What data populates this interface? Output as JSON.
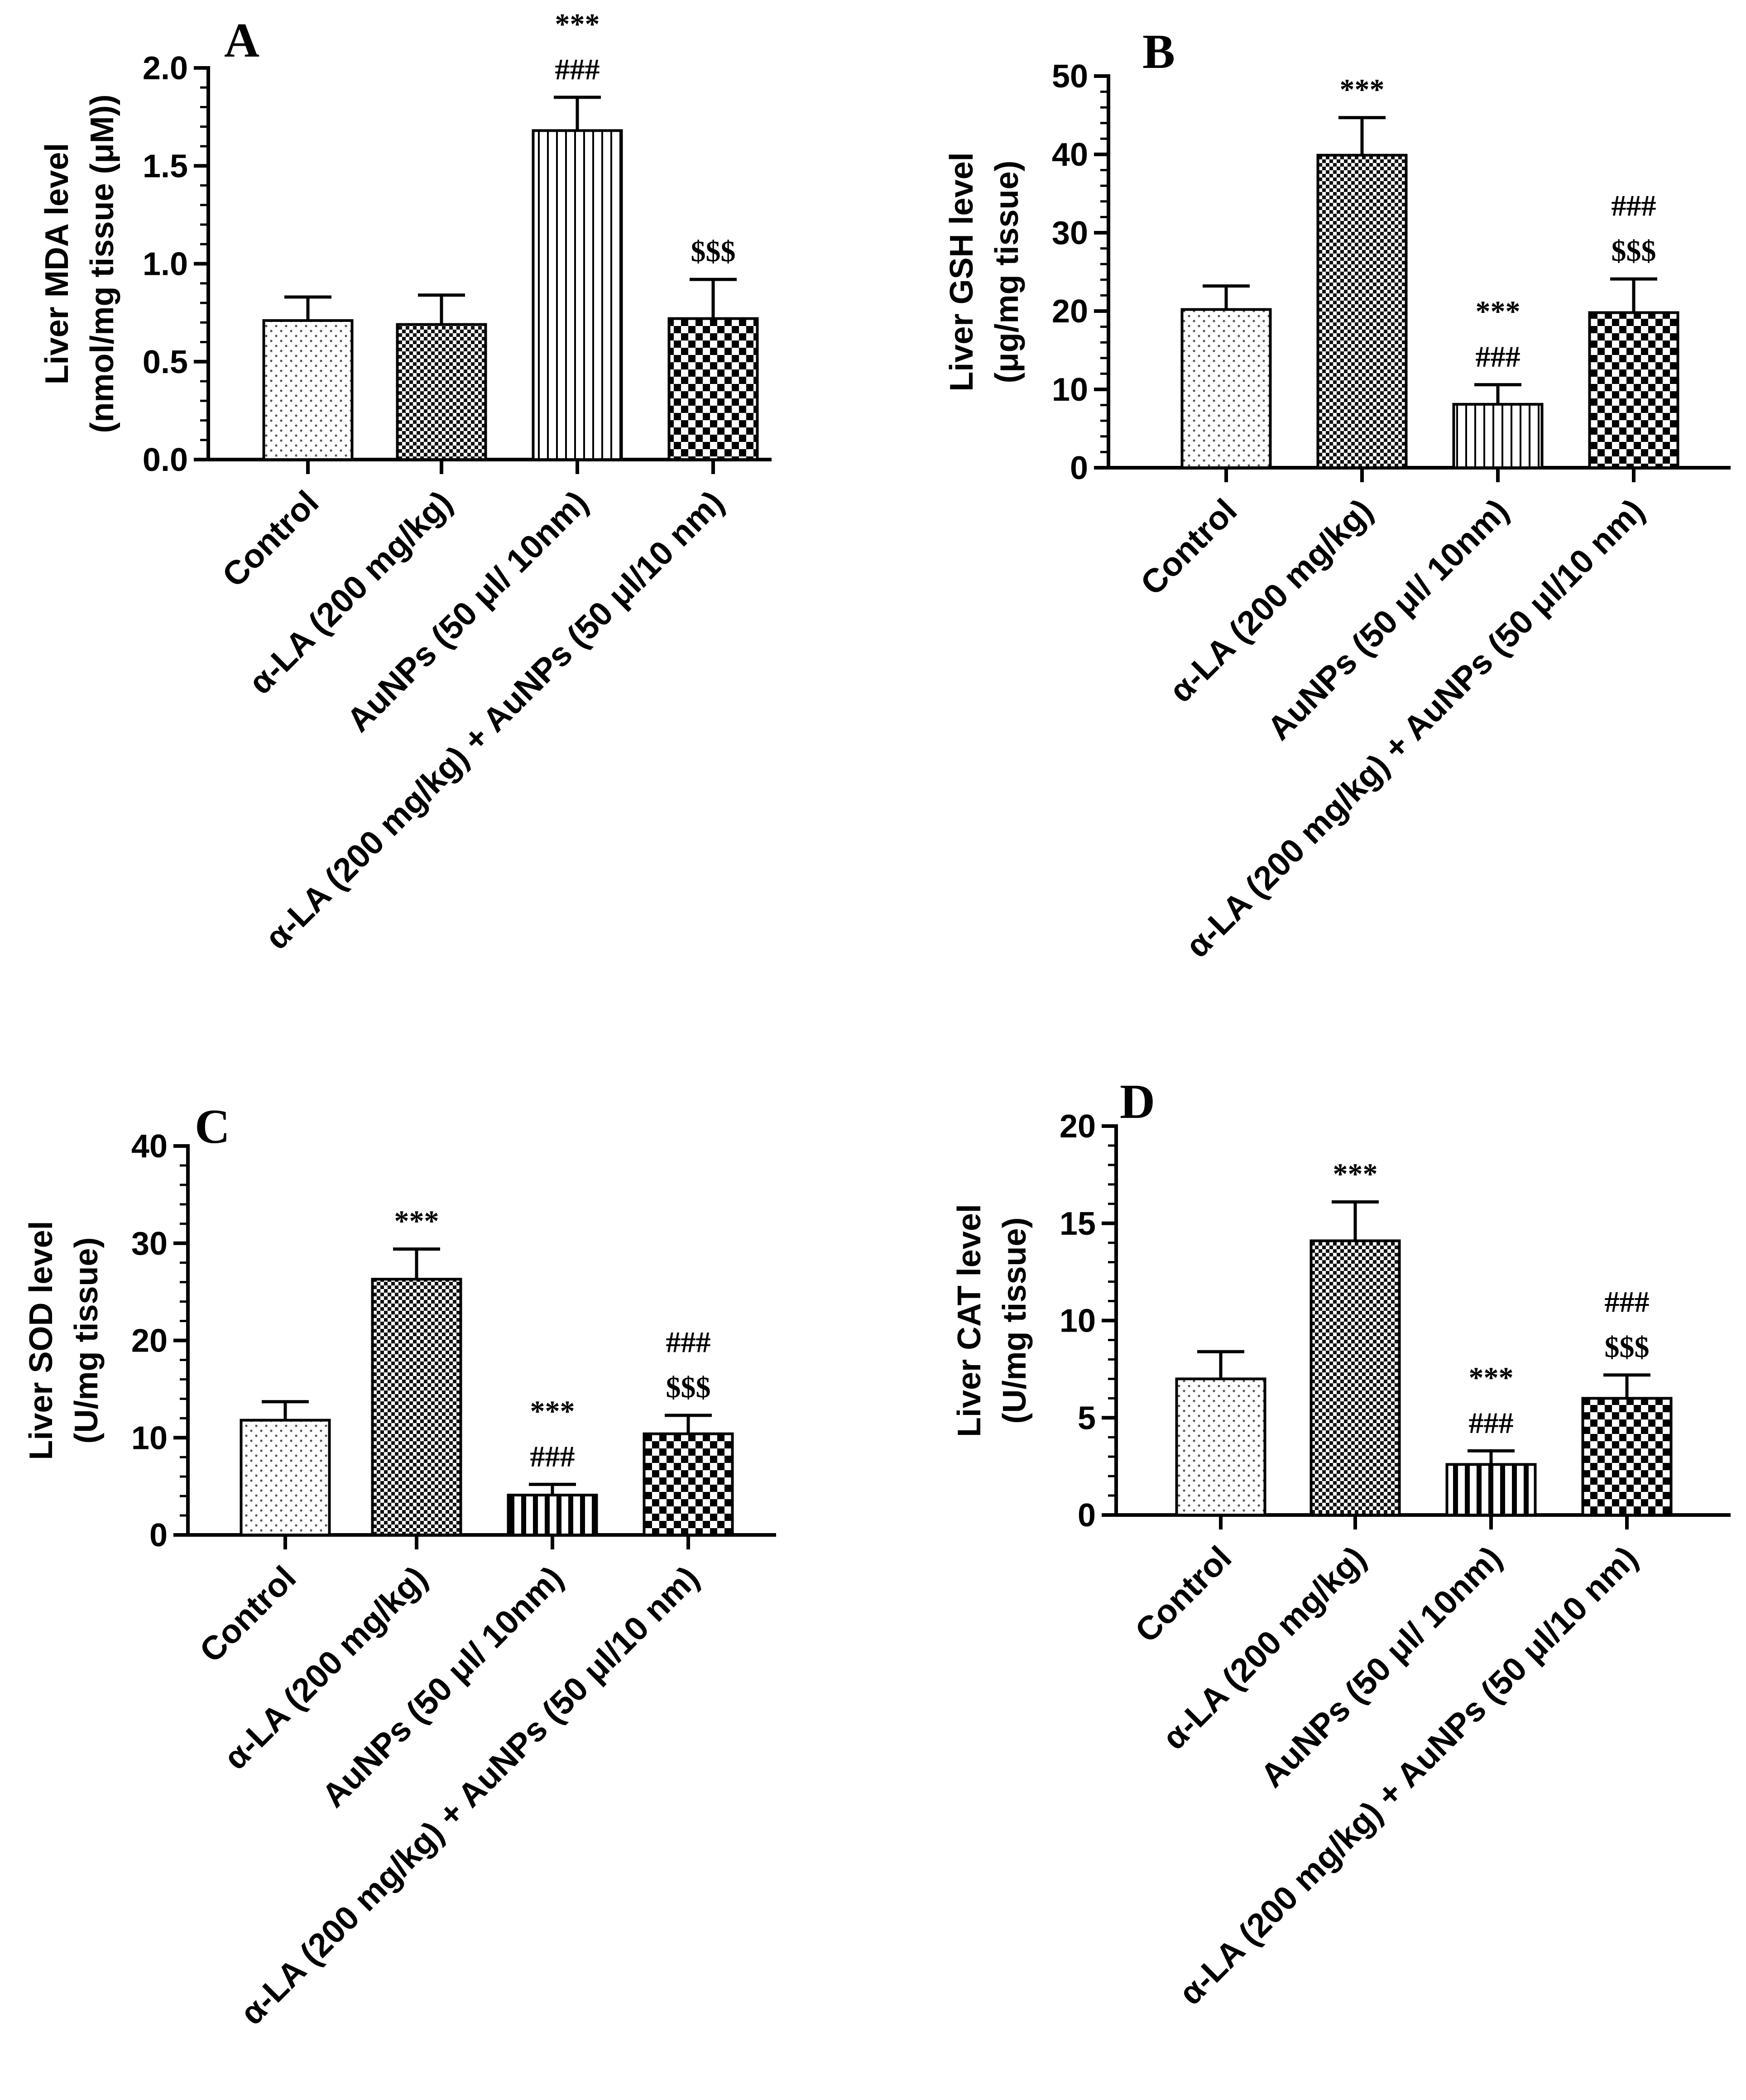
{
  "chart_data": [
    {
      "panel": "A",
      "type": "bar",
      "categories": [
        "Control",
        "α-LA (200 mg/kg)",
        "AuNPs (50 μl/ 10nm)",
        "α-LA (200 mg/kg) + AuNPs (50 μl/10 nm)"
      ],
      "values": [
        0.71,
        0.69,
        1.68,
        0.72
      ],
      "errors": [
        0.12,
        0.15,
        0.17,
        0.2
      ],
      "annotations": [
        [],
        [],
        [
          "***",
          "###"
        ],
        [
          "$$$"
        ]
      ],
      "ylabel_lines": [
        "Liver MDA level",
        "(nmol/mg  tissue (μM))"
      ],
      "ylim": [
        0,
        2.0
      ],
      "yticks": [
        "0.0",
        "0.5",
        "1.0",
        "1.5",
        "2.0"
      ],
      "ytick_values": [
        0,
        0.5,
        1.0,
        1.5,
        2.0
      ],
      "patterns": [
        "dots",
        "checker-fine",
        "vlines",
        "checker"
      ]
    },
    {
      "panel": "B",
      "type": "bar",
      "categories": [
        "Control",
        "α-LA (200 mg/kg)",
        "AuNPs (50 μl/ 10nm)",
        "α-LA (200 mg/kg) + AuNPs (50 μl/10 nm)"
      ],
      "values": [
        20.2,
        39.9,
        8.1,
        19.8
      ],
      "errors": [
        3.0,
        4.8,
        2.5,
        4.3
      ],
      "annotations": [
        [],
        [
          "***"
        ],
        [
          "***",
          "###"
        ],
        [
          "###",
          "$$$"
        ]
      ],
      "ylabel_lines": [
        "Liver GSH level",
        "(μg/mg tissue)"
      ],
      "ylim": [
        0,
        50
      ],
      "yticks": [
        "0",
        "10",
        "20",
        "30",
        "40",
        "50"
      ],
      "ytick_values": [
        0,
        10,
        20,
        30,
        40,
        50
      ],
      "patterns": [
        "dots",
        "checker-fine",
        "vlines",
        "checker"
      ]
    },
    {
      "panel": "C",
      "type": "bar",
      "categories": [
        "Control",
        "α-LA (200 mg/kg)",
        "AuNPs (50 μl/ 10nm)",
        "α-LA (200 mg/kg) + AuNPs (50 μl/10 nm)"
      ],
      "values": [
        11.8,
        26.3,
        4.1,
        10.4
      ],
      "errors": [
        1.9,
        3.1,
        1.1,
        1.9
      ],
      "annotations": [
        [],
        [
          "***"
        ],
        [
          "***",
          "###"
        ],
        [
          "###",
          "$$$"
        ]
      ],
      "ylabel_lines": [
        "Liver SOD level",
        "(U/mg tissue)"
      ],
      "ylim": [
        0,
        40
      ],
      "yticks": [
        "0",
        "10",
        "20",
        "30",
        "40"
      ],
      "ytick_values": [
        0,
        10,
        20,
        30,
        40
      ],
      "patterns": [
        "dots",
        "checker-fine",
        "vlines-bold",
        "checker"
      ]
    },
    {
      "panel": "D",
      "type": "bar",
      "categories": [
        "Control",
        "α-LA (200 mg/kg)",
        "AuNPs (50 μl/ 10nm)",
        "α-LA (200 mg/kg) + AuNPs (50 μl/10 nm)"
      ],
      "values": [
        7.0,
        14.1,
        2.6,
        6.0
      ],
      "errors": [
        1.4,
        2.0,
        0.7,
        1.2
      ],
      "annotations": [
        [],
        [
          "***"
        ],
        [
          "***",
          "###"
        ],
        [
          "###",
          "$$$"
        ]
      ],
      "ylabel_lines": [
        "Liver CAT level",
        "(U/mg tissue)"
      ],
      "ylim": [
        0,
        20
      ],
      "yticks": [
        "0",
        "5",
        "10",
        "15",
        "20"
      ],
      "ytick_values": [
        0,
        5,
        10,
        15,
        20
      ],
      "patterns": [
        "dots",
        "checker-fine",
        "vlines-bold",
        "checker"
      ]
    }
  ]
}
